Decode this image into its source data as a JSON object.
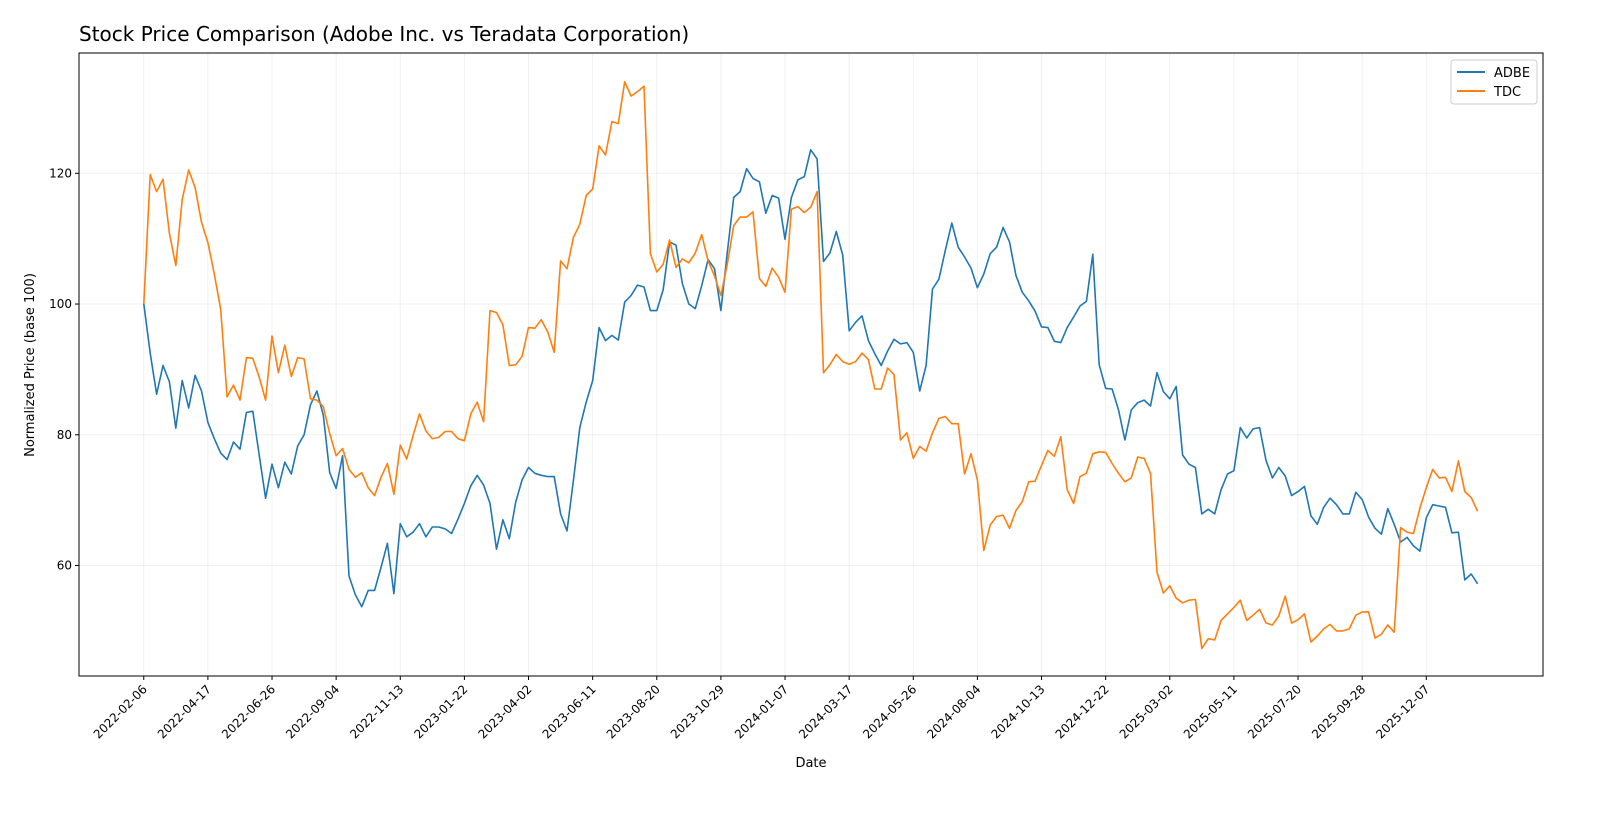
{
  "chart_data": {
    "type": "line",
    "title": "Stock Price Comparison (Adobe Inc. vs Teradata Corporation)",
    "xlabel": "Date",
    "ylabel": "Normalized Price (base 100)",
    "x_start": "2022-02-06",
    "x_frequency": "weekly",
    "x_ticks": [
      "2022-02-06",
      "2022-04-17",
      "2022-06-26",
      "2022-09-04",
      "2022-11-13",
      "2023-01-22",
      "2023-04-02",
      "2023-06-11",
      "2023-08-20",
      "2023-10-29",
      "2024-01-07",
      "2024-03-17",
      "2024-05-26",
      "2024-08-04",
      "2024-10-13",
      "2024-12-22",
      "2025-03-02",
      "2025-05-11",
      "2025-07-20",
      "2025-09-28",
      "2025-12-07"
    ],
    "y_ticks": [
      60,
      80,
      100,
      120
    ],
    "ylim": [
      43.1,
      138.4
    ],
    "grid": true,
    "legend_position": "top-right",
    "series": [
      {
        "name": "ADBE",
        "color": "#1f77b4",
        "values": [
          100,
          92.5,
          86.2,
          90.6,
          88.1,
          81,
          88.3,
          84.1,
          89.1,
          86.7,
          81.9,
          79.4,
          77.2,
          76.2,
          78.9,
          77.8,
          83.4,
          83.6,
          76.9,
          70.3,
          75.5,
          71.9,
          75.8,
          74,
          78.3,
          80,
          84.6,
          86.7,
          83,
          74.2,
          71.8,
          76.8,
          58.4,
          55.5,
          53.7,
          56.2,
          56.2,
          59.7,
          63.4,
          55.7,
          66.4,
          64.4,
          65.1,
          66.4,
          64.4,
          65.9,
          65.9,
          65.6,
          64.9,
          67.1,
          69.5,
          72.2,
          73.8,
          72.3,
          69.5,
          62.5,
          67,
          64.1,
          69.7,
          73.1,
          75,
          74.1,
          73.8,
          73.6,
          73.6,
          67.9,
          65.3,
          73,
          81.1,
          85,
          88.3,
          96.4,
          94.4,
          95.2,
          94.5,
          100.3,
          101.3,
          102.9,
          102.6,
          99,
          99,
          102.2,
          109.5,
          109,
          103.1,
          100,
          99.3,
          102.8,
          106.8,
          105.4,
          99,
          107.9,
          116.3,
          117.2,
          120.7,
          119.2,
          118.7,
          113.9,
          116.6,
          116.2,
          109.9,
          116.3,
          119,
          119.5,
          123.6,
          122.2,
          106.5,
          107.8,
          111.1,
          107.5,
          95.9,
          97.2,
          98.2,
          94.4,
          92.4,
          90.6,
          92.8,
          94.6,
          93.9,
          94.1,
          92.6,
          86.7,
          90.6,
          102.3,
          103.8,
          108.2,
          112.4,
          108.7,
          107.2,
          105.5,
          102.5,
          104.6,
          107.7,
          108.7,
          111.7,
          109.5,
          104.4,
          101.8,
          100.5,
          98.9,
          96.5,
          96.4,
          94.3,
          94.1,
          96.4,
          98,
          99.7,
          100.4,
          107.6,
          90.7,
          87.1,
          87,
          83.8,
          79.2,
          83.8,
          84.9,
          85.3,
          84.4,
          89.5,
          86.6,
          85.5,
          87.4,
          76.9,
          75.5,
          75,
          67.9,
          68.6,
          67.9,
          71.6,
          74,
          74.5,
          81.1,
          79.5,
          80.9,
          81.1,
          76.1,
          73.4,
          75,
          73.7,
          70.7,
          71.3,
          72.1,
          67.6,
          66.3,
          68.9,
          70.3,
          69.3,
          67.9,
          67.9,
          71.2,
          70.1,
          67.4,
          65.7,
          64.8,
          68.7,
          66.3,
          63.6,
          64.3,
          63,
          62.2,
          67.3,
          69.3,
          69.1,
          68.9,
          65,
          65.1,
          57.8,
          58.7,
          57.2
        ]
      },
      {
        "name": "TDC",
        "color": "#ff7f0e",
        "values": [
          100,
          119.8,
          117.2,
          119.1,
          110.8,
          105.9,
          116,
          120.5,
          117.8,
          112.5,
          109.4,
          104.6,
          99.2,
          85.8,
          87.6,
          85.3,
          91.8,
          91.7,
          88.8,
          85.3,
          95.1,
          89.5,
          93.7,
          88.9,
          91.8,
          91.6,
          85.5,
          85.3,
          84.3,
          80.2,
          76.8,
          77.9,
          74.7,
          73.5,
          74.2,
          71.9,
          70.7,
          73.5,
          75.6,
          70.9,
          78.4,
          76.3,
          79.9,
          83.2,
          80.6,
          79.4,
          79.6,
          80.5,
          80.5,
          79.4,
          79.1,
          83.2,
          85,
          82,
          99,
          98.7,
          96.8,
          90.6,
          90.7,
          92,
          96.4,
          96.3,
          97.6,
          95.7,
          92.6,
          106.6,
          105.4,
          110.2,
          112.2,
          116.6,
          117.6,
          124.2,
          122.8,
          127.9,
          127.6,
          134,
          131.8,
          132.5,
          133.3,
          107.7,
          104.9,
          106.1,
          109.8,
          105.6,
          106.9,
          106.3,
          107.8,
          110.6,
          106.6,
          104.3,
          101.3,
          106.1,
          112,
          113.3,
          113.3,
          114.1,
          103.9,
          102.7,
          105.5,
          104.1,
          101.8,
          114.5,
          114.9,
          114,
          114.8,
          117.2,
          89.5,
          90.7,
          92.3,
          91.2,
          90.8,
          91.2,
          92.5,
          91.5,
          87,
          87,
          90.2,
          89.2,
          79.2,
          80.3,
          76.4,
          78.2,
          77.5,
          80.3,
          82.5,
          82.8,
          81.7,
          81.7,
          74,
          77.1,
          73.1,
          62.3,
          66.2,
          67.5,
          67.7,
          65.7,
          68.4,
          69.8,
          72.8,
          72.9,
          75.3,
          77.6,
          76.7,
          79.7,
          71.6,
          69.5,
          73.6,
          74.1,
          77.1,
          77.4,
          77.3,
          75.6,
          74.1,
          72.8,
          73.4,
          76.6,
          76.4,
          74.1,
          59,
          55.8,
          56.9,
          55,
          54.3,
          54.7,
          54.8,
          47.3,
          48.8,
          48.6,
          51.6,
          52.6,
          53.6,
          54.7,
          51.6,
          52.4,
          53.3,
          51.2,
          50.9,
          52.3,
          55.3,
          51.2,
          51.7,
          52.6,
          48.3,
          49.2,
          50.3,
          51,
          50,
          50,
          50.3,
          52.4,
          52.9,
          52.9,
          48.9,
          49.5,
          50.9,
          49.8,
          65.8,
          65.1,
          64.9,
          68.8,
          71.9,
          74.7,
          73.4,
          73.5,
          71.3,
          76,
          71.3,
          70.4,
          68.3
        ]
      }
    ]
  }
}
